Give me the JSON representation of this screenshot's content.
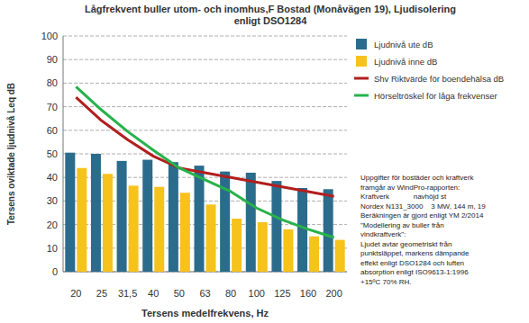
{
  "chart_data": {
    "type": "bar",
    "title": [
      "Lågfrekvent buller utom- och inomhus,F Bostad (Monåvägen 19), Ljudisolering",
      "enligt DSO1284"
    ],
    "x_label": "Tersens medelfrekvens, Hz",
    "y_label": "Tersens oviktade ljudnivå Leq dB",
    "categories": [
      "20",
      "25",
      "31,5",
      "40",
      "50",
      "63",
      "80",
      "100",
      "125",
      "160",
      "200"
    ],
    "series": [
      {
        "name": "Ljudnivå ute dB",
        "type": "bar",
        "color": "#2b6c8c",
        "values": [
          50.5,
          50,
          47,
          47.5,
          46.5,
          45,
          42.5,
          42,
          38.5,
          35.5,
          35
        ]
      },
      {
        "name": "Ljudnivå inne dB",
        "type": "bar",
        "color": "#f6c21c",
        "values": [
          44,
          41.5,
          36.5,
          36,
          33.5,
          28.5,
          22.5,
          21,
          18,
          15,
          13.5
        ]
      },
      {
        "name": "Shv Riktvärde för boendehälsa dB",
        "type": "line",
        "color": "#b11f1f",
        "values": [
          74,
          64,
          56,
          49,
          44,
          42,
          40,
          38,
          36,
          34,
          32
        ]
      },
      {
        "name": "Hörseltröskel för låga frekvenser",
        "type": "line",
        "color": "#27b24a",
        "values": [
          78.5,
          68.5,
          59.5,
          51.5,
          44,
          39,
          34,
          27,
          22,
          18,
          14.5
        ]
      }
    ],
    "ylim": [
      0,
      100
    ],
    "yticks": [
      0,
      10,
      20,
      30,
      40,
      50,
      60,
      70,
      80,
      90,
      100
    ],
    "grid": true,
    "legend": "right",
    "annotation": [
      "Uppgifter för bostäder och kraftverk",
      "framgår av WindPro-rapporten:",
      "Kraftverk            navhöjd st",
      "Nordex N131_3000    3 MW, 144 m, 19",
      "Beräkningen är gjord enligt YM 2/2014",
      "\"Modellering av buller från",
      "vindkraftverk\":",
      "Ljudet avtar geometriskt från",
      "punktsläppet, markens dämpande",
      "effekt enligt DSO1284 och luften",
      "absorption enligt ISO9613-1:1996",
      "+15ºC 70% RH."
    ]
  }
}
